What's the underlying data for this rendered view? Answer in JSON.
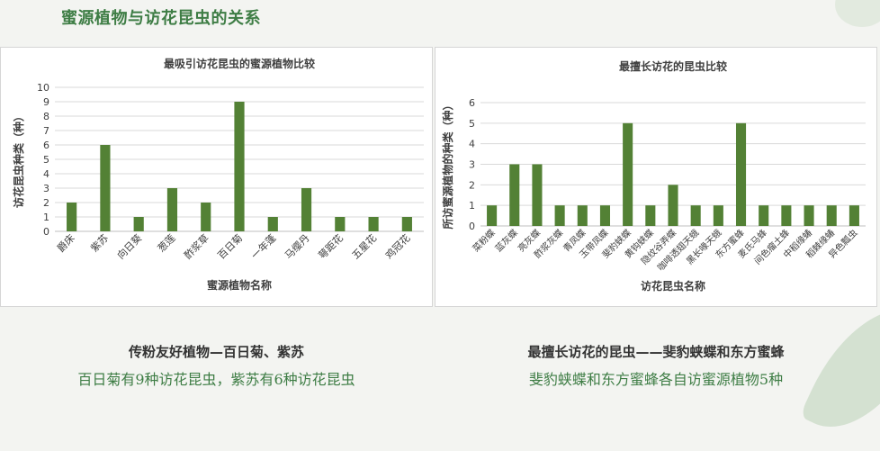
{
  "page_title": "蜜源植物与访花昆虫的关系",
  "colors": {
    "bar": "#538135",
    "title": "#3e7d45",
    "grid": "#d9d9d9"
  },
  "captions": {
    "left_head": "传粉友好植物—百日菊、紫苏",
    "left_sub": "百日菊有9种访花昆虫，紫苏有6种访花昆虫",
    "right_head": "最擅长访花的昆虫——斐豹蛱蝶和东方蜜蜂",
    "right_sub": "斐豹蛱蝶和东方蜜蜂各自访蜜源植物5种"
  },
  "chart_data": [
    {
      "type": "bar",
      "title": "最吸引访花昆虫的蜜源植物比较",
      "xlabel": "蜜源植物名称",
      "ylabel": "访花昆虫种类（种）",
      "ylim": [
        0,
        10
      ],
      "yticks": [
        0,
        1,
        2,
        3,
        4,
        5,
        6,
        7,
        8,
        9,
        10
      ],
      "grid": true,
      "categories": [
        "爵床",
        "紫苏",
        "向日葵",
        "葱莲",
        "酢浆草",
        "百日菊",
        "一年蓬",
        "马缨丹",
        "萼距花",
        "五星花",
        "鸡冠花"
      ],
      "values": [
        2,
        6,
        1,
        3,
        2,
        9,
        1,
        3,
        1,
        1,
        1
      ]
    },
    {
      "type": "bar",
      "title": "最擅长访花的昆虫比较",
      "xlabel": "访花昆虫名称",
      "ylabel": "所访蜜源植物的种类（种）",
      "ylim": [
        0,
        6
      ],
      "yticks": [
        0,
        1,
        2,
        3,
        4,
        5,
        6
      ],
      "grid": true,
      "categories": [
        "菜粉蝶",
        "蓝灰蝶",
        "亮灰蝶",
        "酢浆灰蝶",
        "青凤蝶",
        "玉带凤蝶",
        "斐豹蛱蝶",
        "黄钩蛱蝶",
        "隐纹谷弄蝶",
        "咖啡透翅天蛾",
        "黑长喙天蛾",
        "东方蜜蜂",
        "麦氏马蜂",
        "间色瘤土蜂",
        "中稻缘蝽",
        "稻棘缘蝽",
        "异色瓢虫"
      ],
      "values": [
        1,
        3,
        3,
        1,
        1,
        1,
        5,
        1,
        2,
        1,
        1,
        5,
        1,
        1,
        1,
        1,
        1
      ]
    }
  ]
}
